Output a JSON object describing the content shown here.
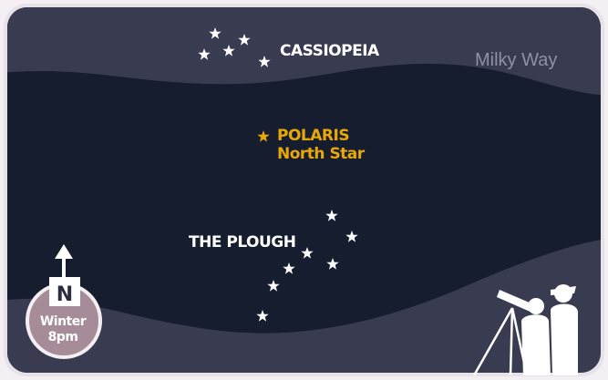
{
  "sky": {
    "milky_way": "Milky Way",
    "cassiopeia": "CASSIOPEIA",
    "polaris": {
      "name": "POLARIS",
      "subtitle": "North Star"
    },
    "plough": "THE PLOUGH",
    "compass": {
      "direction": "N",
      "season": "Winter",
      "time": "8pm"
    }
  }
}
